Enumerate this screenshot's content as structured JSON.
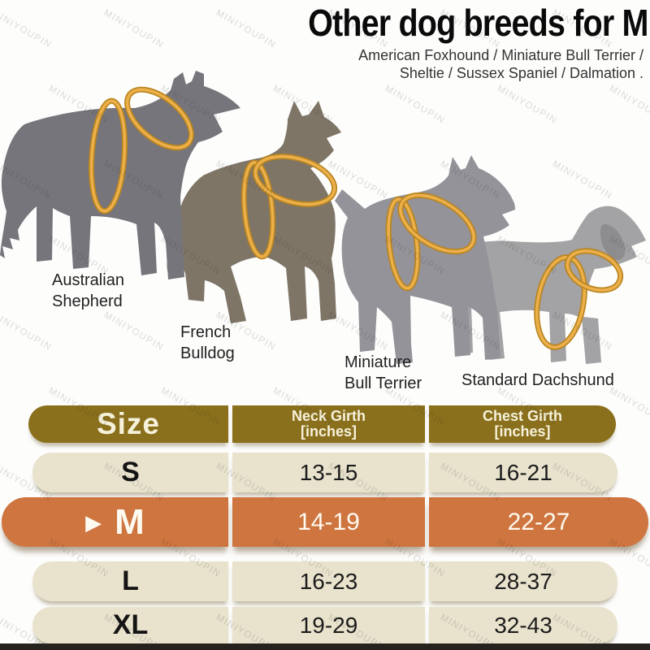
{
  "title": "Other dog breeds for M",
  "subtitle": {
    "line1": "American Foxhound / Miniature Bull Terrier /",
    "line2": "Sheltie / Sussex Spaniel / Dalmation ."
  },
  "watermark": "MINIYOUPIN",
  "dogs": [
    {
      "name": "Australian Shepherd",
      "label_line1": "Australian",
      "label_line2": "Shepherd"
    },
    {
      "name": "French Bulldog",
      "label_line1": "French",
      "label_line2": "Bulldog"
    },
    {
      "name": "Miniature Bull Terrier",
      "label_line1": "Miniature",
      "label_line2": "Bull Terrier"
    },
    {
      "name": "Standard Dachshund",
      "label_line1": "Standard Dachshund",
      "label_line2": ""
    }
  ],
  "table": {
    "header": {
      "size": "Size",
      "neck_line1": "Neck Girth",
      "neck_line2": "[inches]",
      "chest_line1": "Chest Girth",
      "chest_line2": "[inches]"
    },
    "rows": [
      {
        "size": "S",
        "neck": "13-15",
        "chest": "16-21",
        "selected": false
      },
      {
        "size": "M",
        "neck": "14-19",
        "chest": "22-27",
        "selected": true,
        "marker": "▶"
      },
      {
        "size": "L",
        "neck": "16-23",
        "chest": "28-37",
        "selected": false
      },
      {
        "size": "XL",
        "neck": "19-29",
        "chest": "32-43",
        "selected": false
      }
    ]
  },
  "colors": {
    "header_bg": "#8a701c",
    "row_bg": "#e9e3cd",
    "highlight_bg": "#cf7540",
    "ring_gold": "#e2a43e",
    "dog_gray_dark": "#76757b",
    "dog_taupe": "#7e7567",
    "dog_gray_mid": "#949399",
    "dog_gray_light": "#a3a2a4"
  }
}
